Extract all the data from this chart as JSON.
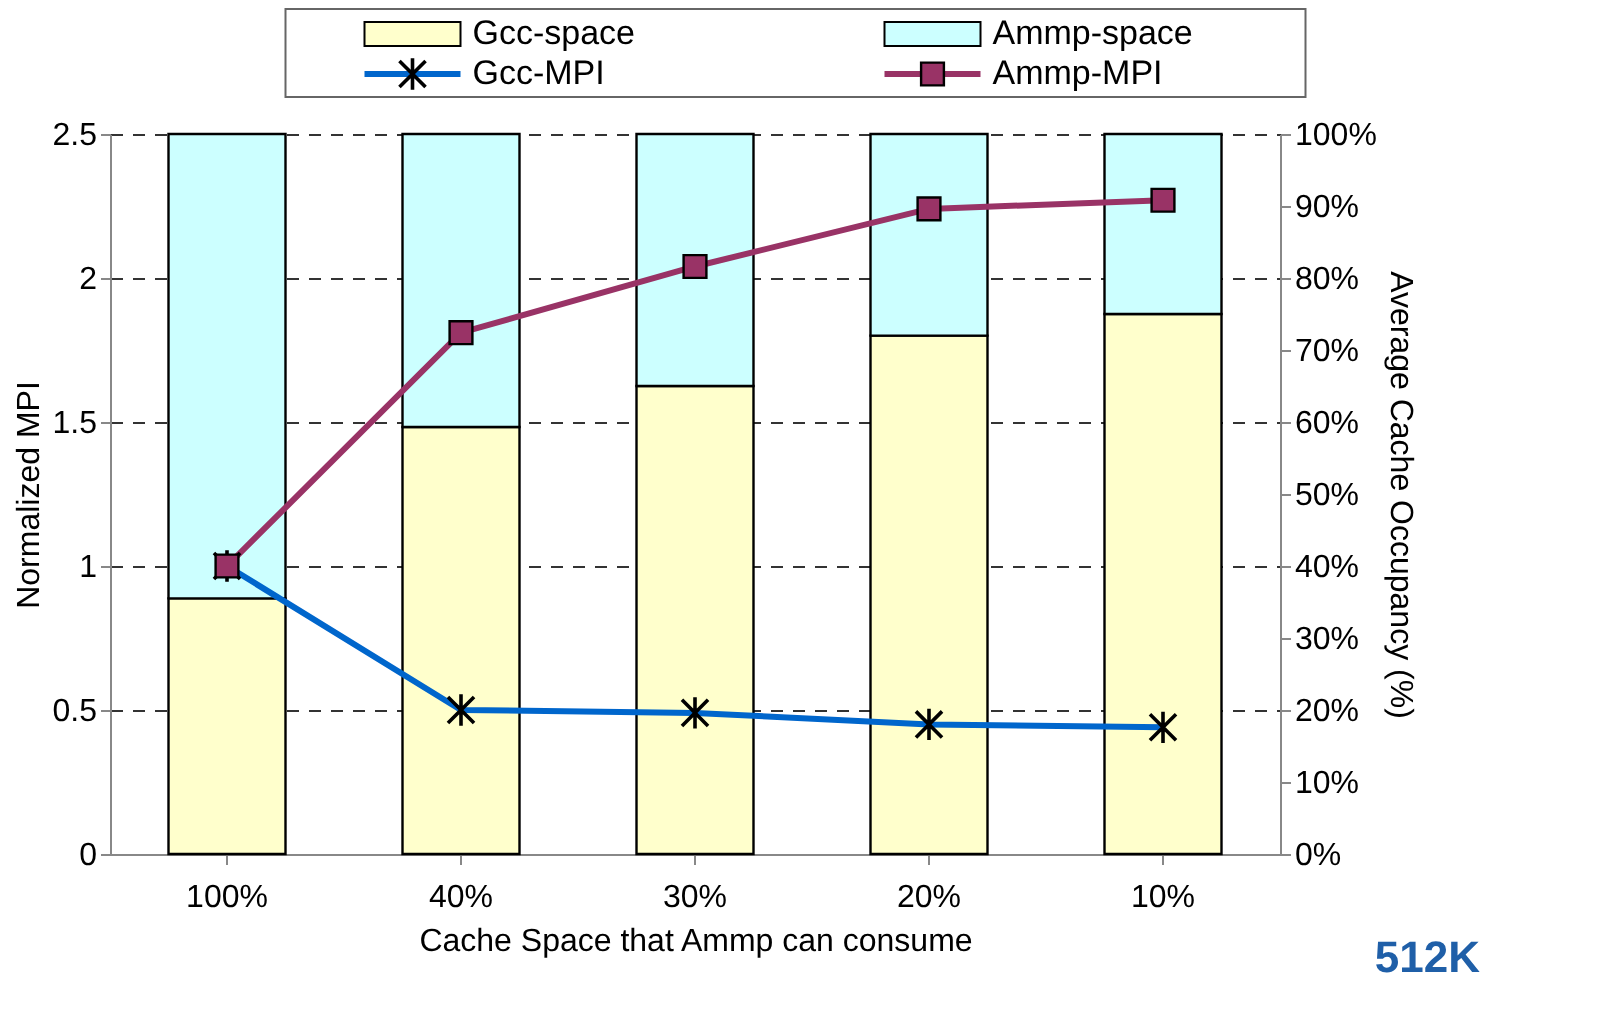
{
  "chart_data": {
    "type": "bar",
    "stacked": true,
    "categories": [
      "100%",
      "40%",
      "30%",
      "20%",
      "10%"
    ],
    "xlabel": "Cache Space that Ammp can consume",
    "ylabel": "Normalized MPI",
    "y2label": "Average Cache Occupancy (%)",
    "series": [
      {
        "name": "Gcc-space",
        "axis": "y2",
        "color": "#ffffcc",
        "values": [
          35.5,
          59.3,
          65,
          72,
          75
        ]
      },
      {
        "name": "Ammp-space",
        "axis": "y2",
        "color": "#ccffff",
        "values": [
          64.5,
          40.7,
          35,
          28,
          25
        ]
      },
      {
        "name": "Gcc-MPI",
        "type": "line",
        "axis": "y",
        "color": "#0066cc",
        "marker": "cross",
        "values": [
          1.0,
          0.5,
          0.49,
          0.45,
          0.44
        ]
      },
      {
        "name": "Ammp-MPI",
        "type": "line",
        "axis": "y",
        "color": "#993366",
        "marker": "square",
        "values": [
          1.0,
          1.81,
          2.04,
          2.24,
          2.27
        ]
      }
    ],
    "ylim": [
      0,
      2.5
    ],
    "yticks": [
      0,
      0.5,
      1,
      1.5,
      2,
      2.5
    ],
    "y2lim": [
      0,
      100
    ],
    "y2ticks": [
      {
        "value": 0,
        "label": "0%"
      },
      {
        "value": 10,
        "label": "10%"
      },
      {
        "value": 20,
        "label": "20%"
      },
      {
        "value": 30,
        "label": "30%"
      },
      {
        "value": 40,
        "label": "40%"
      },
      {
        "value": 50,
        "label": "50%"
      },
      {
        "value": 60,
        "label": "60%"
      },
      {
        "value": 70,
        "label": "70%"
      },
      {
        "value": 80,
        "label": "80%"
      },
      {
        "value": 90,
        "label": "90%"
      },
      {
        "value": 100,
        "label": "100%"
      }
    ],
    "grid": "y",
    "legend": "top",
    "line_style": "solid",
    "annotations": [
      "512K"
    ]
  }
}
